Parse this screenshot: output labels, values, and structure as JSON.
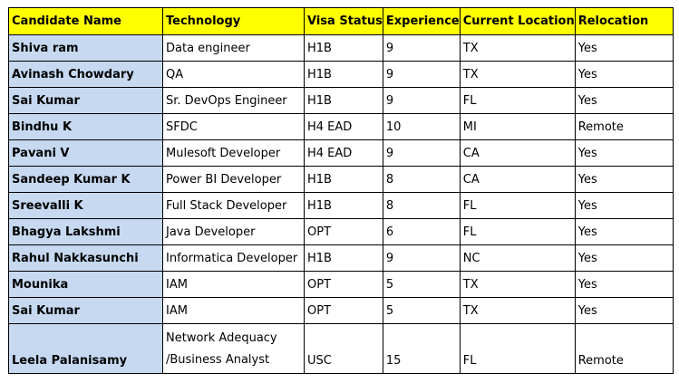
{
  "table": {
    "headers": [
      "Candidate Name",
      "Technology",
      "Visa Status",
      "Experience",
      "Current Location",
      "Relocation"
    ],
    "rows": [
      [
        "Shiva ram",
        "Data engineer",
        "H1B",
        "9",
        "TX",
        "Yes"
      ],
      [
        "Avinash Chowdary",
        "QA",
        "H1B",
        "9",
        "TX",
        "Yes"
      ],
      [
        "Sai Kumar",
        "Sr. DevOps Engineer",
        "H1B",
        "9",
        "FL",
        "Yes"
      ],
      [
        "Bindhu K",
        "SFDC",
        "H4 EAD",
        "10",
        "MI",
        "Remote"
      ],
      [
        "Pavani V",
        "Mulesoft Developer",
        "H4 EAD",
        "9",
        "CA",
        "Yes"
      ],
      [
        "Sandeep Kumar K",
        "Power BI Developer",
        "H1B",
        "8",
        "CA",
        "Yes"
      ],
      [
        "Sreevalli K",
        "Full Stack Developer",
        "H1B",
        "8",
        "FL",
        "Yes"
      ],
      [
        "Bhagya Lakshmi",
        "Java Developer",
        "OPT",
        "6",
        "FL",
        "Yes"
      ],
      [
        "Rahul Nakkasunchi",
        "Informatica Developer",
        "H1B",
        "9",
        "NC",
        "Yes"
      ],
      [
        "Mounika",
        "IAM",
        "OPT",
        "5",
        "TX",
        "Yes"
      ],
      [
        "Sai Kumar",
        "IAM",
        "OPT",
        "5",
        "TX",
        "Yes"
      ],
      [
        "Leela Palanisamy",
        "Network Adequacy /Business Analyst",
        "USC",
        "15",
        "FL",
        "Remote"
      ]
    ],
    "last_row_technology_lines": [
      "Network Adequacy",
      "/Business Analyst"
    ]
  },
  "colors": {
    "header_background": "#ffff00",
    "name_column_background": "#c6d9f1",
    "border": "#000000"
  }
}
